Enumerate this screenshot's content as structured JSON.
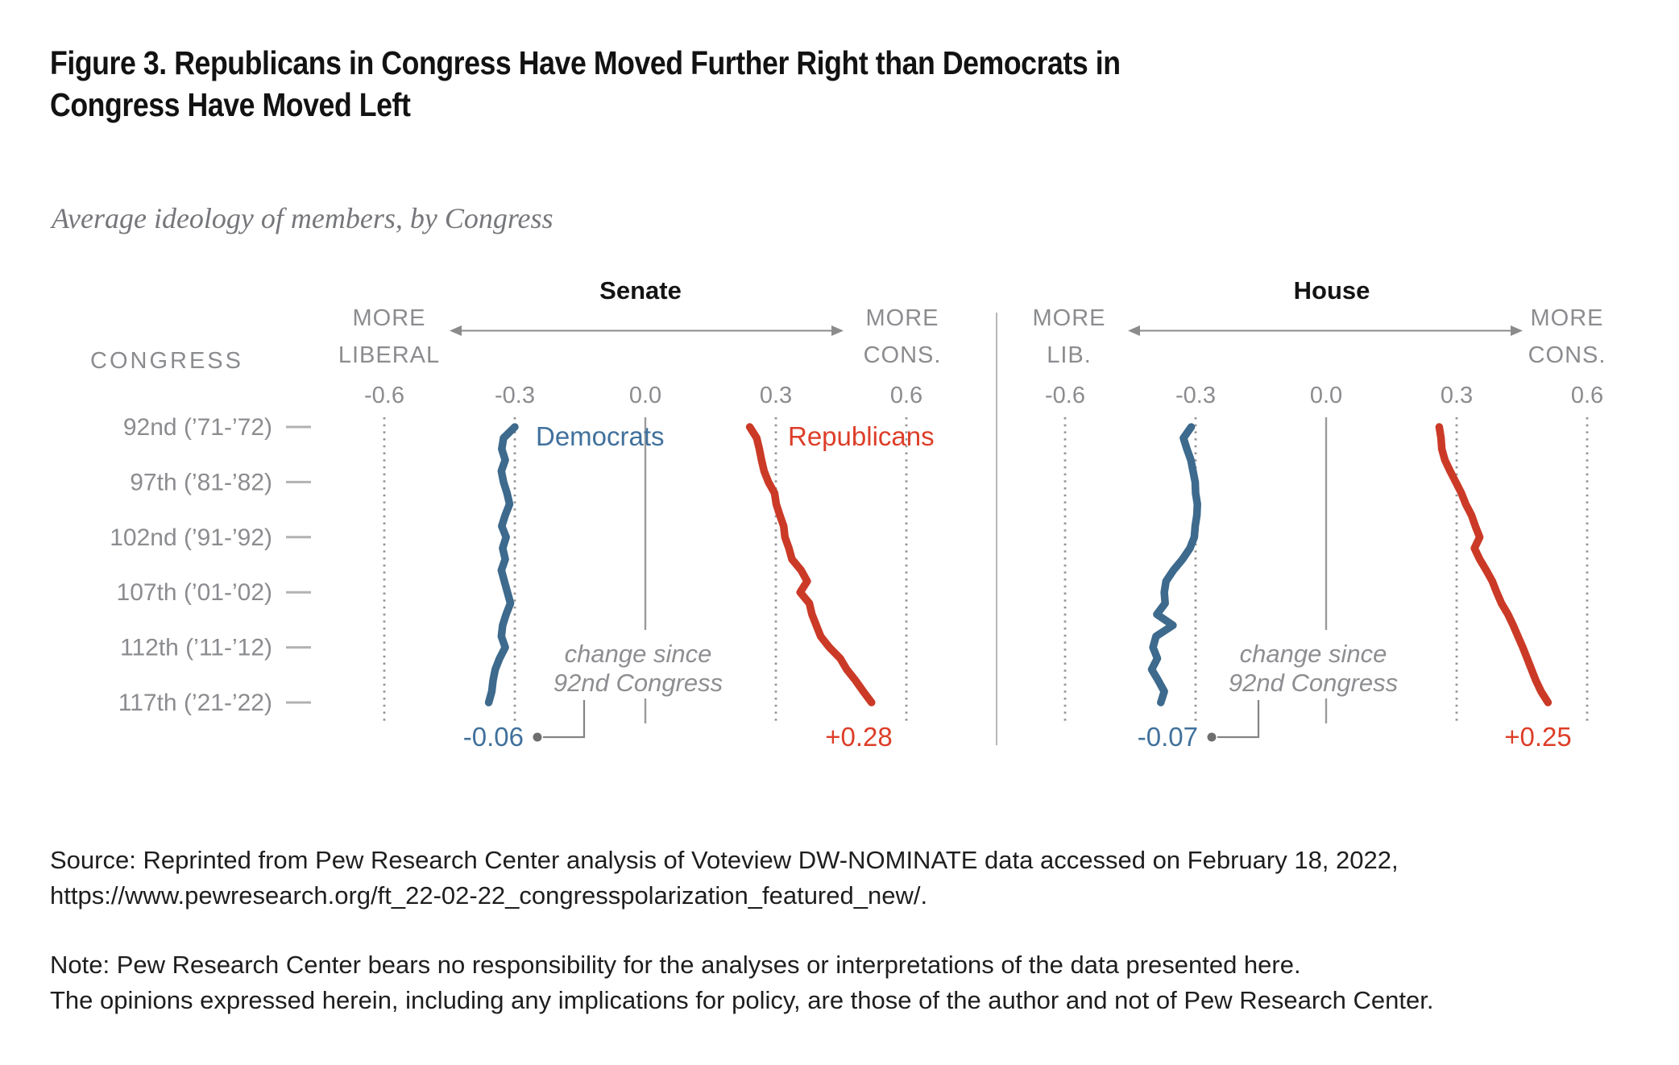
{
  "header": {
    "title_line1": "Figure 3. Republicans in Congress Have Moved Further Right than Democrats in",
    "title_line2": "Congress Have Moved Left",
    "subtitle": "Average ideology of members, by Congress"
  },
  "footer": {
    "source_line1": "Source: Reprinted from Pew Research Center analysis of Voteview DW-NOMINATE data accessed on February 18, 2022,",
    "source_line2": "https://www.pewresearch.org/ft_22-02-22_congresspolarization_featured_new/.",
    "note_line1": "Note: Pew Research Center bears no responsibility for the analyses or interpretations of the data presented here.",
    "note_line2": "The opinions expressed herein, including any implications for policy, are those of the author and not of Pew Research Center."
  },
  "chart_data": {
    "type": "line",
    "row_axis_title": "CONGRESS",
    "row_labels": [
      "92nd (’71-’72)",
      "97th (’81-’82)",
      "102nd (’91-’92)",
      "107th (’01-’02)",
      "112th (’11-’12)",
      "117th (’21-’22)"
    ],
    "congress_range": [
      92,
      117
    ],
    "x_ticks": [
      -0.6,
      -0.3,
      0.0,
      0.3,
      0.6
    ],
    "x_tick_labels": [
      "-0.6",
      "-0.3",
      "0.0",
      "0.3",
      "0.6"
    ],
    "xlim": [
      -0.75,
      0.75
    ],
    "grid": "dotted-vertical",
    "legend_position": "inline-top",
    "panels": [
      {
        "title": "Senate",
        "left_label": [
          "MORE",
          "LIBERAL"
        ],
        "right_label": [
          "MORE",
          "CONS."
        ],
        "show_series_labels": true,
        "series": [
          {
            "name": "Democrats",
            "party": "dem",
            "values": [
              -0.3,
              -0.326,
              -0.33,
              -0.322,
              -0.331,
              -0.326,
              -0.318,
              -0.312,
              -0.322,
              -0.33,
              -0.32,
              -0.328,
              -0.322,
              -0.331,
              -0.324,
              -0.317,
              -0.31,
              -0.32,
              -0.328,
              -0.331,
              -0.322,
              -0.335,
              -0.345,
              -0.35,
              -0.353,
              -0.36
            ]
          },
          {
            "name": "Republicans",
            "party": "rep",
            "values": [
              0.24,
              0.256,
              0.262,
              0.267,
              0.273,
              0.283,
              0.297,
              0.301,
              0.309,
              0.318,
              0.321,
              0.33,
              0.337,
              0.358,
              0.372,
              0.356,
              0.377,
              0.383,
              0.393,
              0.403,
              0.423,
              0.448,
              0.463,
              0.483,
              0.501,
              0.52
            ]
          }
        ],
        "dem_change_label": "-0.06",
        "rep_change_label": "+0.28",
        "callout": [
          "change since",
          "92nd Congress"
        ]
      },
      {
        "title": "House",
        "left_label": [
          "MORE",
          "LIB."
        ],
        "right_label": [
          "MORE",
          "CONS."
        ],
        "show_series_labels": false,
        "series": [
          {
            "name": "Democrats",
            "party": "dem",
            "values": [
              -0.31,
              -0.328,
              -0.32,
              -0.311,
              -0.306,
              -0.301,
              -0.3,
              -0.296,
              -0.297,
              -0.301,
              -0.303,
              -0.313,
              -0.33,
              -0.351,
              -0.368,
              -0.372,
              -0.37,
              -0.389,
              -0.352,
              -0.391,
              -0.398,
              -0.388,
              -0.401,
              -0.386,
              -0.372,
              -0.38
            ]
          },
          {
            "name": "Republicans",
            "party": "rep",
            "values": [
              0.26,
              0.264,
              0.266,
              0.273,
              0.285,
              0.298,
              0.311,
              0.321,
              0.334,
              0.343,
              0.353,
              0.341,
              0.353,
              0.368,
              0.382,
              0.392,
              0.403,
              0.418,
              0.43,
              0.441,
              0.452,
              0.462,
              0.472,
              0.482,
              0.494,
              0.51
            ]
          }
        ],
        "dem_change_label": "-0.07",
        "rep_change_label": "+0.25",
        "callout": [
          "change since",
          "92nd Congress"
        ]
      }
    ],
    "colors": {
      "dem_line": "#3d6a8d",
      "dem_text": "#41719c",
      "rep_line": "#cb3a27",
      "rep_text": "#dd3e28",
      "axis_text": "#8b8c8f",
      "grid": "#949494",
      "zero_line": "#9b9b9b",
      "row_dash": "#b2b2b2",
      "arrow": "#8b8b8b",
      "callout_text": "#8d8e91",
      "annotation_dot": "#6e6e6e",
      "elbow": "#848484",
      "divider": "#9e9e9e",
      "panel_title": "#141414"
    }
  }
}
